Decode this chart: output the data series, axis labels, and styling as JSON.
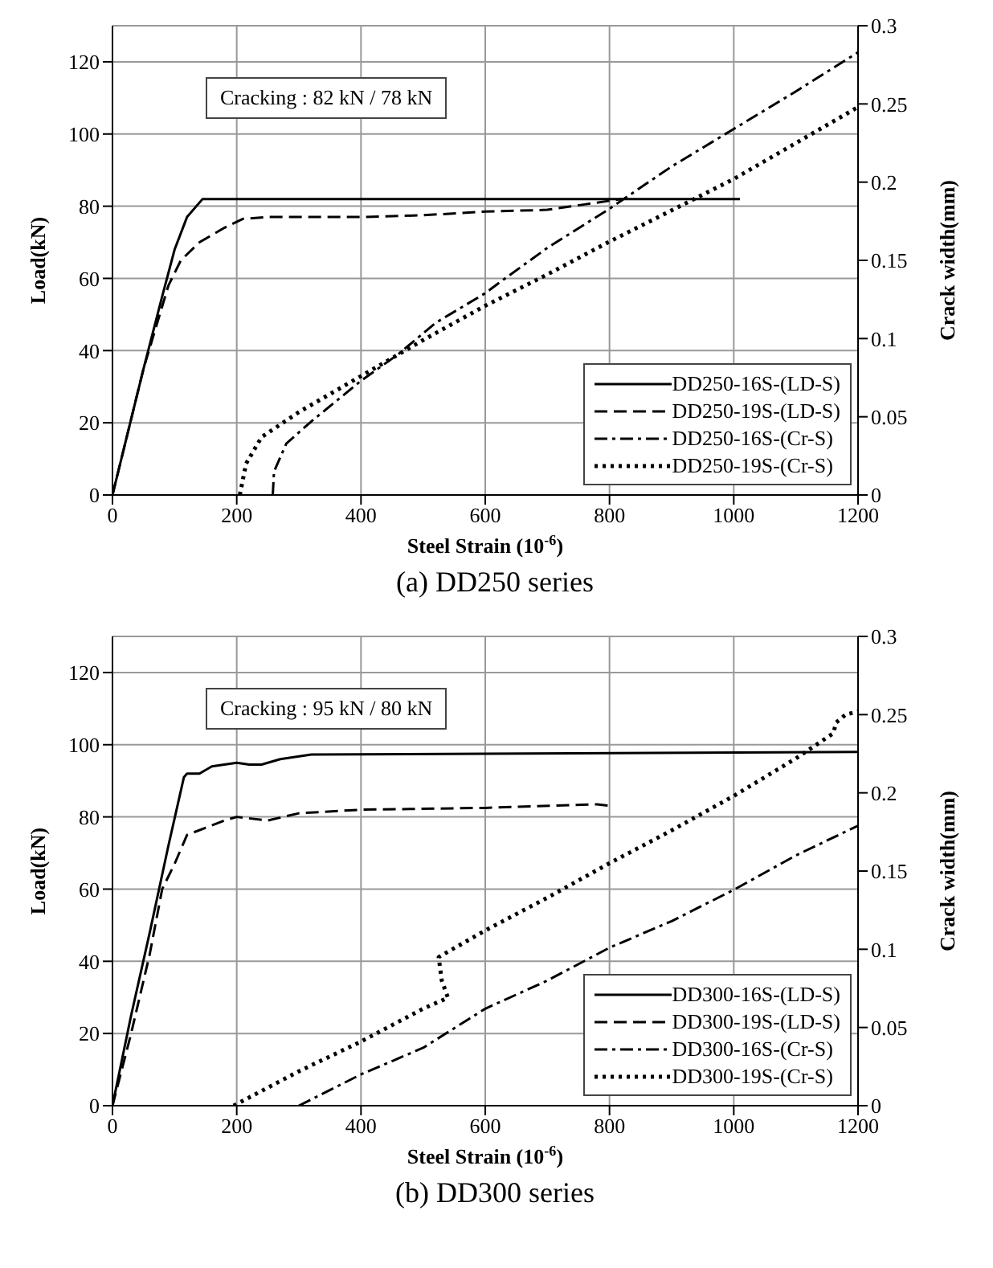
{
  "chart_data": [
    {
      "type": "line",
      "title": "(a) DD250 series",
      "xlabel": "Steel Strain  (10$^{-6}$)",
      "ylabel": "Load(kN)",
      "y2label": "Crack width(mm)",
      "annotations": [
        "Cracking : 82 kN / 78 kN"
      ],
      "xlim": [
        0,
        1200
      ],
      "xticks": [
        0,
        200,
        400,
        600,
        800,
        1000,
        1200
      ],
      "ylim": [
        0,
        130
      ],
      "yticks": [
        0,
        20,
        40,
        60,
        80,
        100,
        120
      ],
      "y2lim": [
        0,
        0.3
      ],
      "y2ticks": [
        0,
        0.05,
        0.1,
        0.15,
        0.2,
        0.25,
        0.3
      ],
      "grid": true,
      "legend": "bottom right",
      "marker": "none",
      "series": [
        {
          "name": "DD250-16S-(LD-S)",
          "color": "#000000",
          "line_style": "solid",
          "x": [
            0,
            20,
            50,
            80,
            100,
            120,
            135,
            145,
            200,
            600,
            1010
          ],
          "values": [
            0,
            14,
            35,
            55,
            68,
            77,
            80,
            82,
            82,
            82,
            82
          ]
        },
        {
          "name": "DD250-19S-(LD-S)",
          "color": "#000000",
          "line_style": "dashed",
          "x": [
            0,
            20,
            50,
            90,
            110,
            140,
            180,
            210,
            250,
            400,
            500,
            600,
            700,
            760,
            800,
            820
          ],
          "values": [
            0,
            14,
            35,
            58,
            65,
            70,
            74,
            76.5,
            77,
            77,
            77.5,
            78.5,
            79,
            80.5,
            81.5,
            82
          ]
        },
        {
          "name": "DD250-16S-(Cr-S)",
          "color": "#000000",
          "line_style": "dashdot",
          "axis": "y2",
          "x": [
            258,
            260,
            280,
            320,
            400,
            460,
            520,
            600,
            620,
            700,
            800,
            900,
            1000,
            1100,
            1200
          ],
          "values": [
            0,
            0.015,
            0.033,
            0.047,
            0.073,
            0.09,
            0.11,
            0.129,
            0.135,
            0.158,
            0.183,
            0.21,
            0.234,
            0.258,
            0.283
          ]
        },
        {
          "name": "DD250-19S-(Cr-S)",
          "color": "#000000",
          "line_style": "dotted",
          "axis": "y2",
          "x": [
            205,
            215,
            240,
            300,
            400,
            500,
            600,
            700,
            800,
            900,
            1000,
            1100,
            1200
          ],
          "values": [
            0,
            0.02,
            0.037,
            0.053,
            0.076,
            0.099,
            0.121,
            0.141,
            0.162,
            0.182,
            0.202,
            0.225,
            0.248
          ]
        }
      ]
    },
    {
      "type": "line",
      "title": "(b) DD300 series",
      "xlabel": "Steel Strain  (10$^{-6}$)",
      "ylabel": "Load(kN)",
      "y2label": "Crack width(mm)",
      "annotations": [
        "Cracking : 95 kN / 80 kN"
      ],
      "xlim": [
        0,
        1200
      ],
      "xticks": [
        0,
        200,
        400,
        600,
        800,
        1000,
        1200
      ],
      "ylim": [
        0,
        130
      ],
      "yticks": [
        0,
        20,
        40,
        60,
        80,
        100,
        120
      ],
      "y2lim": [
        0,
        0.3
      ],
      "y2ticks": [
        0,
        0.05,
        0.1,
        0.15,
        0.2,
        0.25,
        0.3
      ],
      "grid": true,
      "legend": "bottom right",
      "marker": "none",
      "series": [
        {
          "name": "DD300-16S-(LD-S)",
          "color": "#000000",
          "line_style": "solid",
          "x": [
            0,
            30,
            60,
            90,
            115,
            120,
            140,
            160,
            200,
            220,
            240,
            270,
            320,
            600,
            1200
          ],
          "values": [
            0,
            25,
            48,
            72,
            91,
            92,
            92,
            94,
            95,
            94.5,
            94.5,
            96,
            97.3,
            97.5,
            98
          ]
        },
        {
          "name": "DD300-19S-(LD-S)",
          "color": "#000000",
          "line_style": "dashed",
          "x": [
            0,
            30,
            60,
            80,
            100,
            120,
            150,
            180,
            200,
            250,
            300,
            400,
            600,
            780,
            805
          ],
          "values": [
            0,
            20,
            42,
            60,
            67,
            75,
            77,
            79,
            80,
            79,
            81,
            82,
            82.5,
            83.5,
            83
          ]
        },
        {
          "name": "DD300-16S-(Cr-S)",
          "color": "#000000",
          "line_style": "dashdot",
          "axis": "y2",
          "x": [
            300,
            400,
            500,
            600,
            700,
            800,
            900,
            1000,
            1100,
            1200
          ],
          "values": [
            0,
            0.02,
            0.037,
            0.062,
            0.08,
            0.101,
            0.118,
            0.138,
            0.16,
            0.179
          ]
        },
        {
          "name": "DD300-19S-(Cr-S)",
          "color": "#000000",
          "line_style": "dotted",
          "axis": "y2",
          "x": [
            195,
            300,
            400,
            500,
            540,
            530,
            525,
            600,
            700,
            800,
            900,
            1000,
            1100,
            1160,
            1165,
            1180,
            1200
          ],
          "values": [
            0,
            0.022,
            0.041,
            0.062,
            0.069,
            0.08,
            0.095,
            0.112,
            0.133,
            0.155,
            0.176,
            0.198,
            0.222,
            0.238,
            0.245,
            0.25,
            0.252
          ]
        }
      ]
    }
  ]
}
